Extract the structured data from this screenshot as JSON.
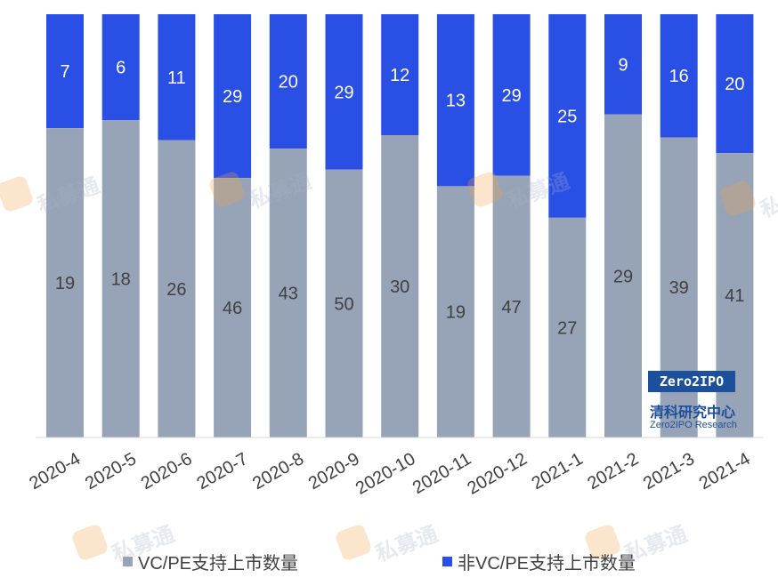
{
  "chart_data": {
    "type": "bar",
    "stacked": true,
    "categories": [
      "2020-4",
      "2020-5",
      "2020-6",
      "2020-7",
      "2020-8",
      "2020-9",
      "2020-10",
      "2020-11",
      "2020-12",
      "2021-1",
      "2021-2",
      "2021-3",
      "2021-4"
    ],
    "series": [
      {
        "name": "VC/PE支持上市数量",
        "values": [
          19,
          18,
          26,
          46,
          43,
          50,
          30,
          19,
          47,
          27,
          29,
          39,
          41
        ],
        "color": "#97a3b7"
      },
      {
        "name": "非VC/PE支持上市数量",
        "values": [
          7,
          6,
          11,
          29,
          20,
          29,
          12,
          13,
          29,
          25,
          9,
          16,
          20
        ],
        "color": "#2a4fe5"
      }
    ],
    "legend_position": "bottom",
    "normalized": true,
    "grid": false
  },
  "legend": {
    "items": [
      {
        "label": "VC/PE支持上市数量",
        "color": "#97a3b7"
      },
      {
        "label": "非VC/PE支持上市数量",
        "color": "#2a4fe5"
      }
    ]
  },
  "logo": {
    "brand": "Zero2IPO",
    "cn": "清科研究中心",
    "en": "Zero2IPO Research"
  },
  "watermark": {
    "text": "私募通"
  }
}
